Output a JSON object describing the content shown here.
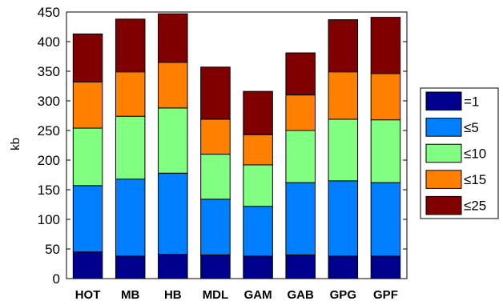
{
  "chart_data": {
    "type": "bar",
    "stacked": true,
    "categories": [
      "HOT",
      "MB",
      "HB",
      "MDL",
      "GAM",
      "GAB",
      "GPG",
      "GPF"
    ],
    "series": [
      {
        "name": "=1",
        "color": "#00008f",
        "values": [
          45,
          38,
          41,
          40,
          38,
          40,
          38,
          38
        ]
      },
      {
        "name": "≤5",
        "color": "#0080ff",
        "values": [
          112,
          130,
          137,
          94,
          84,
          122,
          127,
          124
        ]
      },
      {
        "name": "≤10",
        "color": "#80ff80",
        "values": [
          97,
          106,
          110,
          76,
          70,
          88,
          104,
          106
        ]
      },
      {
        "name": "≤15",
        "color": "#ff8000",
        "values": [
          78,
          75,
          77,
          59,
          51,
          60,
          80,
          78
        ]
      },
      {
        "name": "≤25",
        "color": "#800000",
        "values": [
          81,
          89,
          82,
          88,
          73,
          71,
          88,
          95
        ]
      }
    ],
    "ylabel": "kb",
    "ylim": [
      0,
      450
    ],
    "yticks": [
      "0",
      "50",
      "100",
      "150",
      "200",
      "250",
      "300",
      "350",
      "400",
      "450"
    ],
    "grid": false,
    "legend_position": "right"
  }
}
